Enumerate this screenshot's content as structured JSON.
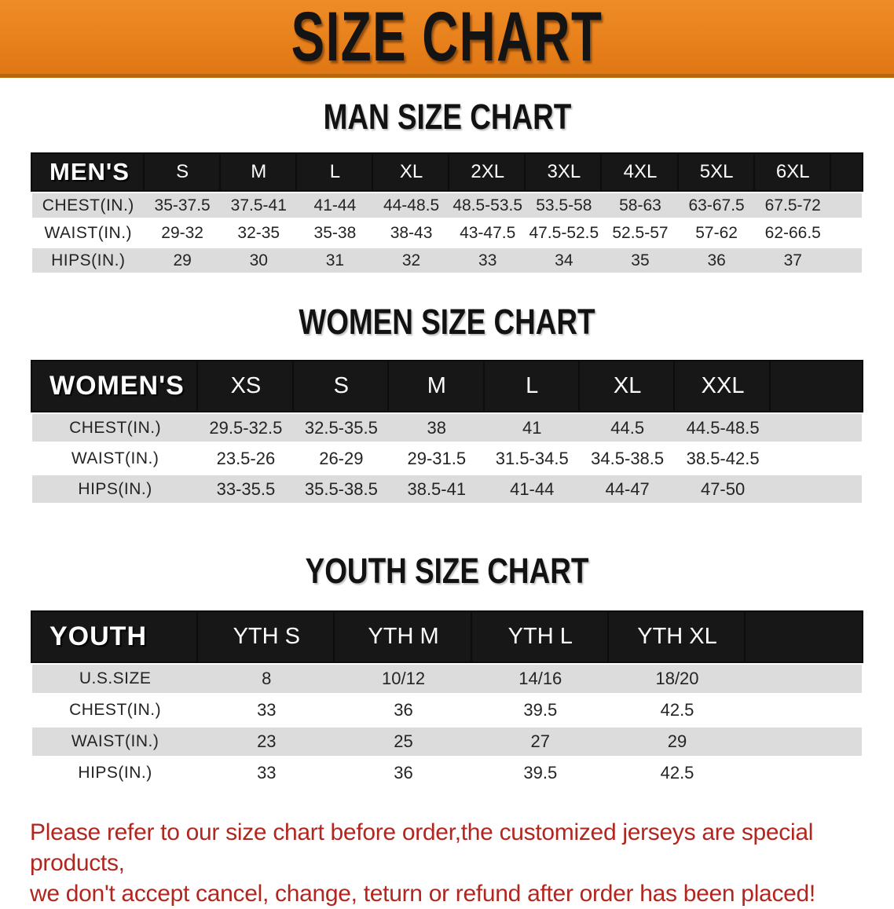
{
  "banner": {
    "title": "SIZE CHART",
    "background": "#E8811C",
    "edge": "#B9670E",
    "text_color": "#141414"
  },
  "sections": [
    {
      "id": "men",
      "heading": "MAN SIZE CHART",
      "table": {
        "header": [
          "MEN'S",
          "S",
          "M",
          "L",
          "XL",
          "2XL",
          "3XL",
          "4XL",
          "5XL",
          "6XL"
        ],
        "rows": [
          [
            "CHEST(IN.)",
            "35-37.5",
            "37.5-41",
            "41-44",
            "44-48.5",
            "48.5-53.5",
            "53.5-58",
            "58-63",
            "63-67.5",
            "67.5-72"
          ],
          [
            "WAIST(IN.)",
            "29-32",
            "32-35",
            "35-38",
            "38-43",
            "43-47.5",
            "47.5-52.5",
            "52.5-57",
            "57-62",
            "62-66.5"
          ],
          [
            "HIPS(IN.)",
            "29",
            "30",
            "31",
            "32",
            "33",
            "34",
            "35",
            "36",
            "37"
          ]
        ]
      }
    },
    {
      "id": "women",
      "heading": "WOMEN SIZE CHART",
      "table": {
        "header": [
          "WOMEN'S",
          "XS",
          "S",
          "M",
          "L",
          "XL",
          "XXL"
        ],
        "rows": [
          [
            "CHEST(IN.)",
            "29.5-32.5",
            "32.5-35.5",
            "38",
            "41",
            "44.5",
            "44.5-48.5"
          ],
          [
            "WAIST(IN.)",
            "23.5-26",
            "26-29",
            "29-31.5",
            "31.5-34.5",
            "34.5-38.5",
            "38.5-42.5"
          ],
          [
            "HIPS(IN.)",
            "33-35.5",
            "35.5-38.5",
            "38.5-41",
            "41-44",
            "44-47",
            "47-50"
          ]
        ]
      }
    },
    {
      "id": "youth",
      "heading": "YOUTH SIZE CHART",
      "table": {
        "header": [
          "YOUTH",
          "YTH S",
          "YTH M",
          "YTH L",
          "YTH XL"
        ],
        "rows": [
          [
            "U.S.SIZE",
            "8",
            "10/12",
            "14/16",
            "18/20"
          ],
          [
            "CHEST(IN.)",
            "33",
            "36",
            "39.5",
            "42.5"
          ],
          [
            "WAIST(IN.)",
            "23",
            "25",
            "27",
            "29"
          ],
          [
            "HIPS(IN.)",
            "33",
            "36",
            "39.5",
            "42.5"
          ]
        ]
      }
    }
  ],
  "disclaimer": {
    "lines": [
      "Please refer to our size chart before order,the customized jerseys are special products,",
      "we don't accept cancel, change, teturn or refund after order has been placed!"
    ],
    "color": "#B1271F"
  },
  "colors": {
    "banner_orange": "#E8811C",
    "table_header_black": "#171717",
    "row_shaded_gray": "#DCDCDC",
    "row_plain_white": "#FFFFFF",
    "disclaimer_red": "#B1271F"
  }
}
